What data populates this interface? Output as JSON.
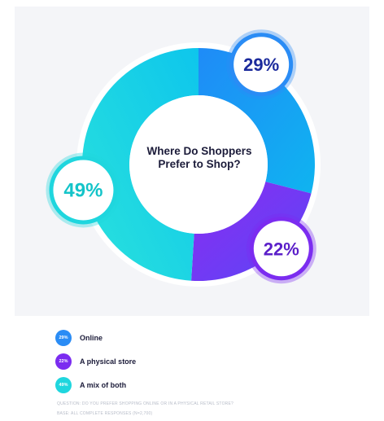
{
  "chart_data": {
    "type": "pie",
    "title": "Where Do Shoppers Prefer to Shop?",
    "categories": [
      "Online",
      "A physical store",
      "A mix of both"
    ],
    "values": [
      29,
      22,
      49
    ],
    "labels": [
      "29%",
      "22%",
      "49%"
    ],
    "colors": [
      "#2a8cf5",
      "#7b2cf0",
      "#1fd6de"
    ],
    "legend_position": "bottom-left"
  },
  "legend": [
    {
      "label": "Online",
      "badge": "29%",
      "color": "#2a8cf5"
    },
    {
      "label": "A physical store",
      "badge": "22%",
      "color": "#7b2cf0"
    },
    {
      "label": "A mix of both",
      "badge": "49%",
      "color": "#1fd6de"
    }
  ],
  "footnotes": {
    "question": "QUESTION: DO YOU PREFER SHOPPING ONLINE OR IN A PHYSICAL RETAIL STORE?",
    "base": "BASE: ALL COMPLETE RESPONSES (N=2,700)"
  }
}
